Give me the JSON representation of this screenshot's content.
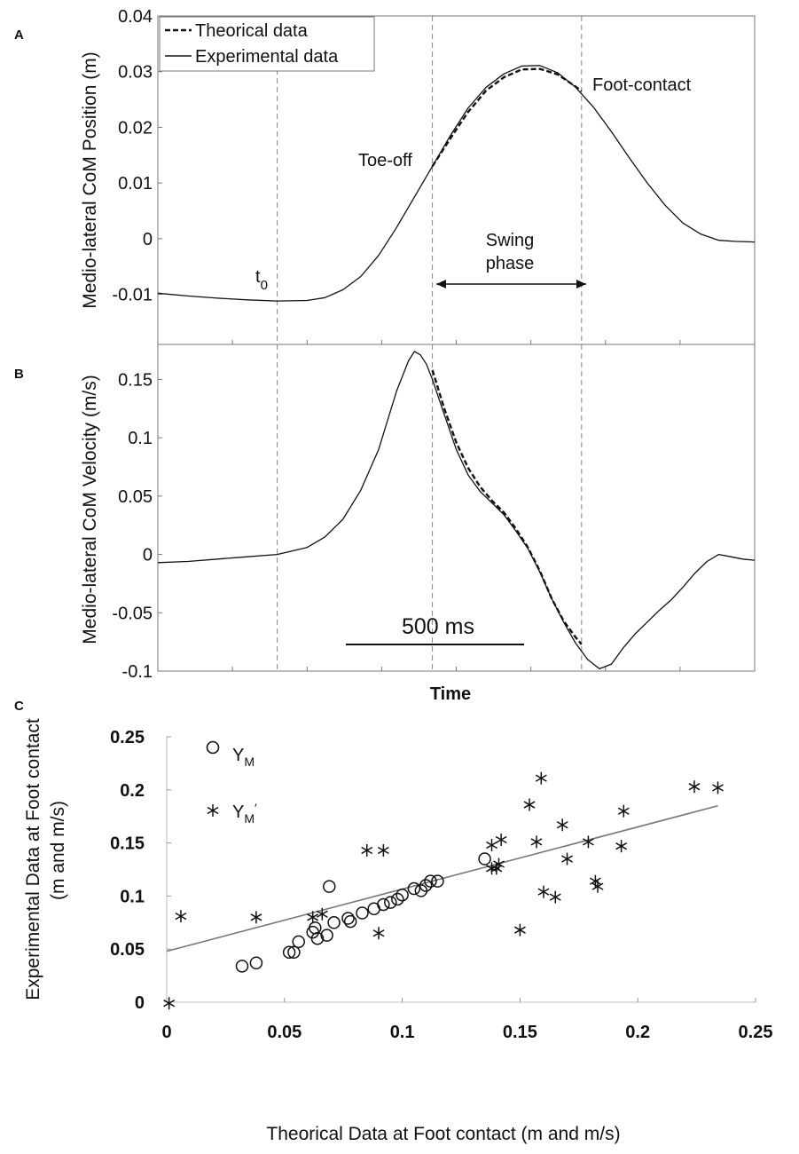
{
  "panels": {
    "A": {
      "letter": "A"
    },
    "B": {
      "letter": "B"
    },
    "C": {
      "letter": "C"
    }
  },
  "chart_data": [
    {
      "id": "A",
      "type": "line",
      "ylabel": "Medio-lateral CoM Position (m)",
      "ylim": [
        -0.019,
        0.04
      ],
      "yticks": [
        -0.01,
        0,
        0.01,
        0.02,
        0.03,
        0.04
      ],
      "ytick_labels": [
        "-0.01",
        "0",
        "0.01",
        "0.02",
        "0.03",
        "0.04"
      ],
      "xlim": [
        0,
        100
      ],
      "legend": [
        "Theorical data",
        "Experimental data"
      ],
      "events": {
        "t0": 20,
        "toe_off": 46,
        "foot_contact": 71
      },
      "annotations": {
        "t0_label": "t",
        "t0_sub": "0",
        "toe_off": "Toe-off",
        "foot_contact": "Foot-contact",
        "swing_line1": "Swing",
        "swing_line2": "phase"
      },
      "series": [
        {
          "name": "Experimental data",
          "x": [
            0,
            5,
            10,
            15,
            20,
            25,
            28,
            31,
            34,
            37,
            40,
            43,
            46,
            49,
            52,
            55,
            58,
            61,
            64,
            67,
            70,
            73,
            76,
            79,
            82,
            85,
            88,
            91,
            94,
            97,
            100
          ],
          "y": [
            -0.0098,
            -0.0103,
            -0.0107,
            -0.011,
            -0.0112,
            -0.0111,
            -0.0106,
            -0.0092,
            -0.0068,
            -0.003,
            0.002,
            0.0075,
            0.013,
            0.0185,
            0.0235,
            0.0272,
            0.0296,
            0.031,
            0.0311,
            0.0298,
            0.0272,
            0.0236,
            0.0192,
            0.0145,
            0.01,
            0.006,
            0.0028,
            0.0008,
            -0.0003,
            -0.0005,
            -0.0006
          ]
        },
        {
          "name": "Theorical data",
          "x": [
            46,
            49,
            52,
            55,
            58,
            61,
            64,
            67,
            70,
            71
          ],
          "y": [
            0.013,
            0.018,
            0.0228,
            0.0266,
            0.029,
            0.0304,
            0.0305,
            0.0295,
            0.0273,
            0.0265
          ]
        }
      ]
    },
    {
      "id": "B",
      "type": "line",
      "ylabel": "Medio-lateral CoM Velocity (m/s)",
      "ylim": [
        -0.1,
        0.18
      ],
      "yticks": [
        -0.1,
        -0.05,
        0,
        0.05,
        0.1,
        0.15
      ],
      "ytick_labels": [
        "-0.1",
        "-0.05",
        "0",
        "0.05",
        "0.1",
        "0.15"
      ],
      "xlim": [
        0,
        100
      ],
      "xlabel": "Time",
      "scale_bar": "500 ms",
      "series": [
        {
          "name": "Experimental data",
          "x": [
            0,
            5,
            10,
            15,
            20,
            25,
            28,
            31,
            34,
            37,
            40,
            42,
            43,
            44,
            45,
            46,
            48,
            50,
            52,
            54,
            56,
            58,
            60,
            62,
            64,
            66,
            68,
            70,
            72,
            74,
            76,
            78,
            80,
            82,
            84,
            86,
            88,
            90,
            92,
            94,
            96,
            98,
            100
          ],
          "y": [
            -0.007,
            -0.006,
            -0.004,
            -0.002,
            0.0,
            0.006,
            0.015,
            0.03,
            0.055,
            0.09,
            0.14,
            0.166,
            0.174,
            0.171,
            0.163,
            0.15,
            0.12,
            0.09,
            0.068,
            0.054,
            0.044,
            0.034,
            0.02,
            0.005,
            -0.015,
            -0.038,
            -0.058,
            -0.076,
            -0.09,
            -0.098,
            -0.094,
            -0.08,
            -0.068,
            -0.058,
            -0.048,
            -0.039,
            -0.028,
            -0.016,
            -0.006,
            0.0,
            -0.002,
            -0.004,
            -0.005
          ]
        },
        {
          "name": "Theorical data",
          "x": [
            46,
            48,
            50,
            52,
            54,
            56,
            58,
            60,
            62,
            64,
            66,
            68,
            70,
            71
          ],
          "y": [
            0.158,
            0.125,
            0.096,
            0.074,
            0.058,
            0.046,
            0.036,
            0.022,
            0.006,
            -0.014,
            -0.038,
            -0.057,
            -0.071,
            -0.077
          ]
        }
      ]
    },
    {
      "id": "C",
      "type": "scatter",
      "xlabel": "Theorical Data at Foot contact (m and m/s)",
      "ylabel_line1": "Experimental Data at Foot contact",
      "ylabel_line2": "(m and m/s)",
      "xlim": [
        0,
        0.25
      ],
      "ylim": [
        0,
        0.25
      ],
      "xticks": [
        0,
        0.05,
        0.1,
        0.15,
        0.2,
        0.25
      ],
      "xtick_labels": [
        "0",
        "0.05",
        "0.1",
        "0.15",
        "0.2",
        "0.25"
      ],
      "yticks": [
        0,
        0.05,
        0.1,
        0.15,
        0.2,
        0.25
      ],
      "ytick_labels": [
        "0",
        "0.05",
        "0.1",
        "0.15",
        "0.2",
        "0.25"
      ],
      "legend": {
        "circle_base": "Y",
        "circle_sub": "M",
        "star_base": "Y",
        "star_sub": "M",
        "star_prime": "′"
      },
      "fit_line": {
        "x": [
          0,
          0.234
        ],
        "y": [
          0.048,
          0.185
        ]
      },
      "series": [
        {
          "name": "YM",
          "marker": "circle",
          "points": [
            [
              0.032,
              0.034
            ],
            [
              0.038,
              0.037
            ],
            [
              0.052,
              0.047
            ],
            [
              0.054,
              0.047
            ],
            [
              0.056,
              0.057
            ],
            [
              0.062,
              0.066
            ],
            [
              0.063,
              0.07
            ],
            [
              0.064,
              0.06
            ],
            [
              0.068,
              0.063
            ],
            [
              0.069,
              0.109
            ],
            [
              0.071,
              0.075
            ],
            [
              0.077,
              0.079
            ],
            [
              0.078,
              0.076
            ],
            [
              0.083,
              0.084
            ],
            [
              0.088,
              0.088
            ],
            [
              0.092,
              0.092
            ],
            [
              0.095,
              0.094
            ],
            [
              0.098,
              0.097
            ],
            [
              0.1,
              0.101
            ],
            [
              0.105,
              0.107
            ],
            [
              0.108,
              0.105
            ],
            [
              0.11,
              0.11
            ],
            [
              0.112,
              0.114
            ],
            [
              0.115,
              0.114
            ],
            [
              0.135,
              0.135
            ]
          ]
        },
        {
          "name": "YM′",
          "marker": "star",
          "points": [
            [
              0.001,
              -0.001
            ],
            [
              0.006,
              0.081
            ],
            [
              0.038,
              0.08
            ],
            [
              0.062,
              0.08
            ],
            [
              0.066,
              0.083
            ],
            [
              0.085,
              0.143
            ],
            [
              0.09,
              0.065
            ],
            [
              0.092,
              0.143
            ],
            [
              0.138,
              0.148
            ],
            [
              0.138,
              0.126
            ],
            [
              0.14,
              0.126
            ],
            [
              0.141,
              0.13
            ],
            [
              0.142,
              0.153
            ],
            [
              0.15,
              0.068
            ],
            [
              0.154,
              0.186
            ],
            [
              0.157,
              0.151
            ],
            [
              0.159,
              0.211
            ],
            [
              0.16,
              0.104
            ],
            [
              0.165,
              0.099
            ],
            [
              0.168,
              0.167
            ],
            [
              0.17,
              0.135
            ],
            [
              0.179,
              0.151
            ],
            [
              0.182,
              0.114
            ],
            [
              0.183,
              0.109
            ],
            [
              0.193,
              0.147
            ],
            [
              0.194,
              0.18
            ],
            [
              0.224,
              0.203
            ],
            [
              0.234,
              0.202
            ]
          ]
        }
      ]
    }
  ]
}
